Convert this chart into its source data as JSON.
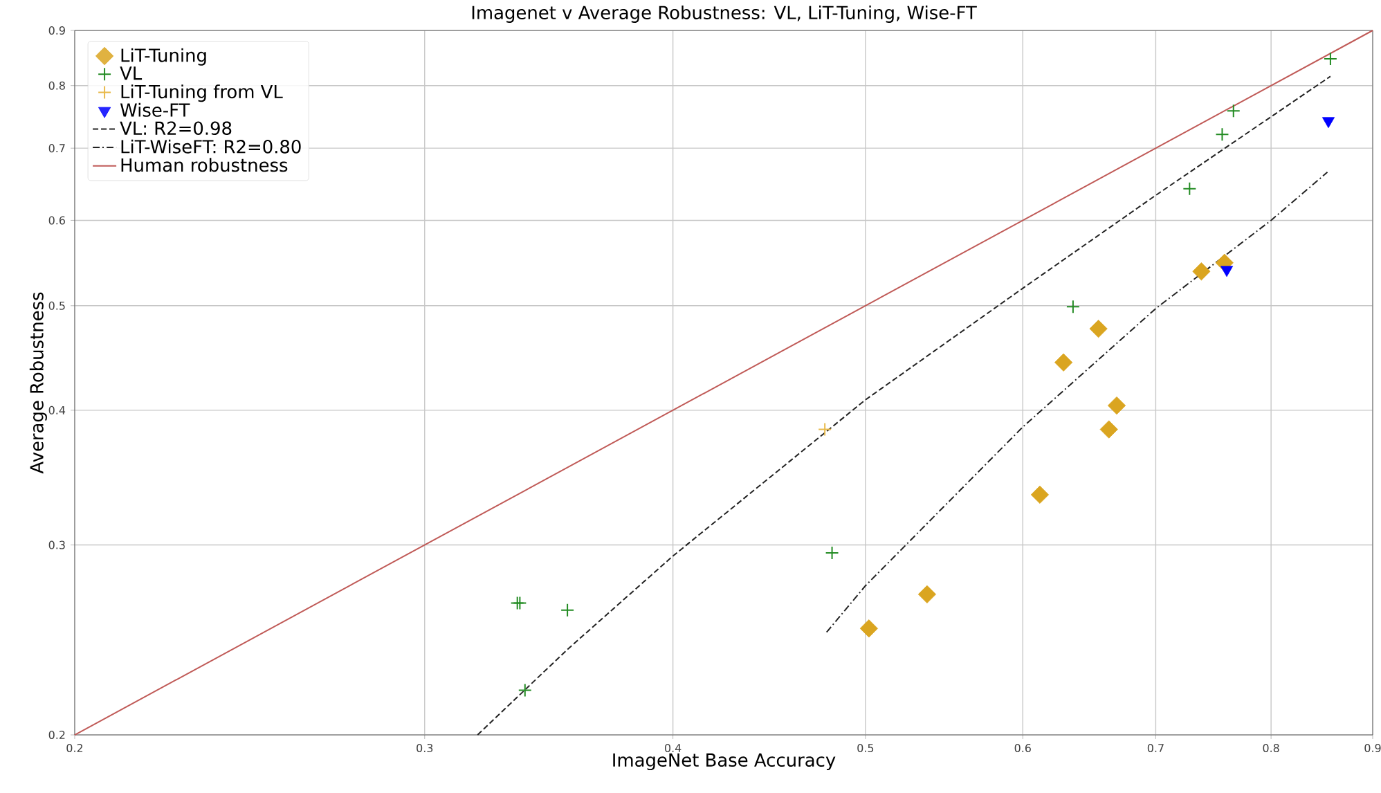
{
  "chart_data": {
    "type": "scatter",
    "title": "Imagenet v Average Robustness: VL, LiT-Tuning, Wise-FT",
    "xlabel": "ImageNet Base Accuracy",
    "ylabel": "Average Robustness",
    "log": "xy",
    "grid": true,
    "legend": "top left",
    "xlim": [
      0.2,
      0.9
    ],
    "ylim": [
      0.2,
      0.9
    ],
    "xticks": [
      0.2,
      0.3,
      0.4,
      0.5,
      0.6,
      0.7,
      0.8,
      0.9
    ],
    "yticks": [
      0.2,
      0.3,
      0.4,
      0.5,
      0.6,
      0.7,
      0.8,
      0.9
    ],
    "series": [
      {
        "name": "LiT-Tuning",
        "type": "scatter",
        "marker": "diamond",
        "color": "#daa520",
        "x": [
          0.502,
          0.537,
          0.612,
          0.629,
          0.655,
          0.663,
          0.669,
          0.738,
          0.758
        ],
        "values": [
          0.251,
          0.27,
          0.334,
          0.443,
          0.476,
          0.384,
          0.404,
          0.538,
          0.548
        ]
      },
      {
        "name": "VL",
        "type": "scatter",
        "marker": "cross",
        "color": "#228b22",
        "x": [
          0.334,
          0.335,
          0.354,
          0.337,
          0.481,
          0.636,
          0.728,
          0.756,
          0.766,
          0.857
        ],
        "values": [
          0.265,
          0.265,
          0.261,
          0.22,
          0.295,
          0.499,
          0.642,
          0.721,
          0.758,
          0.847
        ]
      },
      {
        "name": "LiT-Tuning from VL",
        "type": "scatter",
        "marker": "cross",
        "color": "#e8b94a",
        "x": [
          0.477
        ],
        "values": [
          0.384
        ]
      },
      {
        "name": "Wise-FT",
        "type": "scatter",
        "marker": "triangle",
        "color": "#0000ff",
        "x": [
          0.76,
          0.855
        ],
        "values": [
          0.54,
          0.742
        ]
      },
      {
        "name": "VL: R2=0.98",
        "type": "line",
        "line_style": "dashed",
        "color": "#222222",
        "x": [
          0.319,
          0.354,
          0.4,
          0.5,
          0.6,
          0.7,
          0.857
        ],
        "values": [
          0.2,
          0.24,
          0.293,
          0.409,
          0.519,
          0.633,
          0.816
        ]
      },
      {
        "name": "LiT-WiseFT: R2=0.80",
        "type": "line",
        "line_style": "dashdot",
        "color": "#222222",
        "x": [
          0.478,
          0.5,
          0.6,
          0.7,
          0.8,
          0.854
        ],
        "values": [
          0.249,
          0.275,
          0.386,
          0.497,
          0.6,
          0.665
        ]
      },
      {
        "name": "Human robustness",
        "type": "line",
        "line_style": "solid",
        "color": "#c05a57",
        "x": [
          0.2,
          0.9
        ],
        "values": [
          0.2,
          0.9
        ]
      }
    ]
  }
}
